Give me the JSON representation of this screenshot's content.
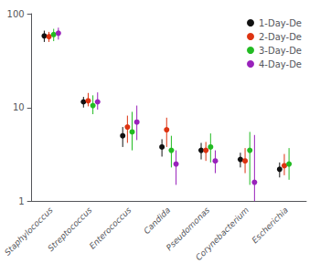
{
  "chart_data": {
    "type": "scatter",
    "categories": [
      "Staphylococcus",
      "Streptococcus",
      "Enterococcus",
      "Candida",
      "Pseudomonas",
      "Corynebacterium",
      "Escherichia"
    ],
    "series": [
      {
        "name": "1-Day-De",
        "color": "#111111",
        "values": [
          58,
          11.5,
          5,
          3.8,
          3.5,
          2.8,
          2.2
        ],
        "yerr_low": [
          8,
          1.5,
          1.2,
          0.8,
          0.7,
          0.5,
          0.4
        ],
        "yerr_high": [
          8,
          1.5,
          1.2,
          0.8,
          0.7,
          0.5,
          0.4
        ]
      },
      {
        "name": "2-Day-De",
        "color": "#dd3311",
        "values": [
          57,
          11.8,
          6.2,
          5.8,
          3.5,
          2.7,
          2.4
        ],
        "yerr_low": [
          7,
          1.5,
          2.0,
          2.0,
          0.8,
          0.7,
          0.5
        ],
        "yerr_high": [
          7,
          2.5,
          2.0,
          2.0,
          0.8,
          1.0,
          0.8
        ]
      },
      {
        "name": "3-Day-De",
        "color": "#22bb22",
        "values": [
          60,
          10.5,
          5.5,
          3.5,
          3.8,
          3.5,
          2.5
        ],
        "yerr_low": [
          9,
          2.0,
          2.0,
          1.2,
          1.2,
          2.0,
          0.8
        ],
        "yerr_high": [
          9,
          3.0,
          3.5,
          1.5,
          1.5,
          2.0,
          1.2
        ]
      },
      {
        "name": "4-Day-De",
        "color": "#9922bb",
        "values": [
          62,
          11.5,
          7.0,
          2.5,
          2.7,
          1.6,
          null
        ],
        "yerr_low": [
          9,
          2.0,
          2.5,
          1.0,
          0.7,
          0.6,
          null
        ],
        "yerr_high": [
          9,
          3.0,
          3.5,
          1.0,
          0.8,
          3.5,
          null
        ]
      }
    ],
    "log": "y",
    "ylim": [
      1,
      100
    ],
    "yticks": [
      1,
      10,
      100
    ],
    "grid": false,
    "legend": "upper right"
  }
}
